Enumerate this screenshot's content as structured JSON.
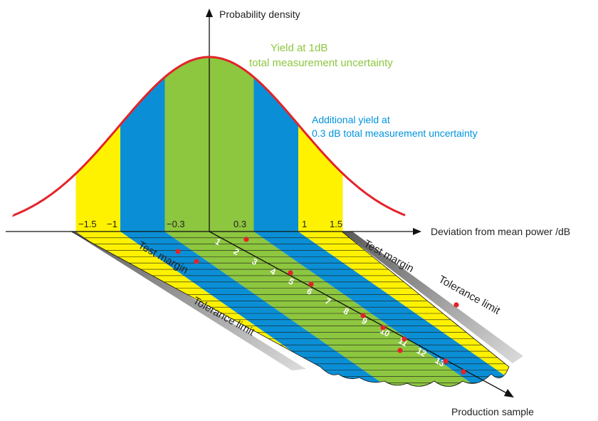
{
  "y_axis_label": "Probability density",
  "x_axis_label": "Deviation from mean power /dB",
  "z_axis_label": "Production sample",
  "green_label_line1": "Yield at 1dB",
  "green_label_line2": "total measurement uncertainty",
  "blue_label_line1": "Additional yield at",
  "blue_label_line2": "0.3 dB total measurement uncertainty",
  "tick_labels": [
    "−1.5",
    "−1",
    "−0.3",
    "0.3",
    "1",
    "1.5"
  ],
  "test_margin_label": "Test margin",
  "tolerance_limit_label": "Tolerance limit",
  "sample_numbers": [
    "1",
    "2",
    "3",
    "4",
    "5",
    "6",
    "7",
    "8",
    "9",
    "10",
    "11",
    "12",
    "13"
  ],
  "colors": {
    "curve": "#e3232a",
    "green": "#8dc63f",
    "blue": "#0a8fd6",
    "yellow": "#fff200",
    "dot": "#e3232a"
  }
}
